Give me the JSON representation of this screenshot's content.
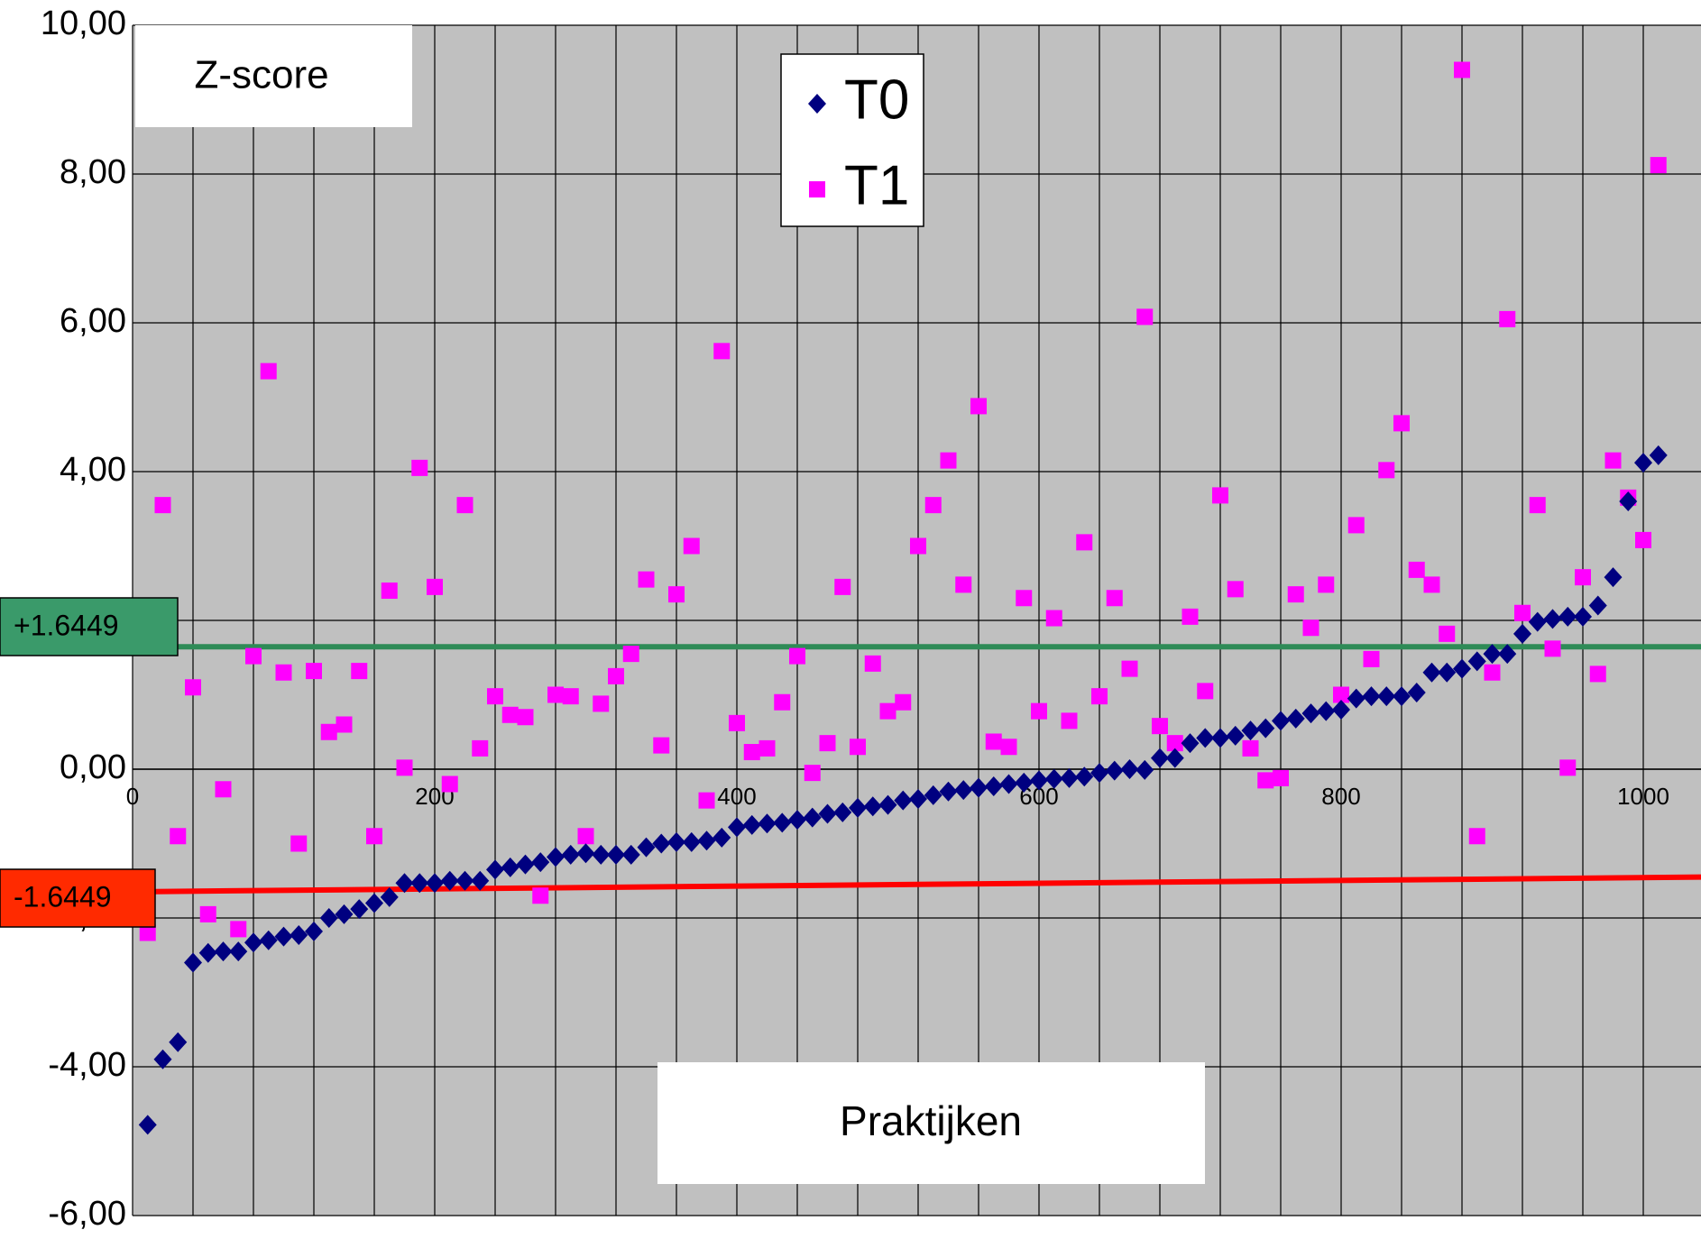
{
  "chart_data": {
    "type": "scatter",
    "ylabel": "Z-score",
    "xlabel": "Praktijken",
    "xlim": [
      0,
      1025
    ],
    "ylim": [
      -6,
      10
    ],
    "x_ticks": [
      "0",
      "200",
      "400",
      "600",
      "800",
      "1000"
    ],
    "y_ticks": [
      "-6,00",
      "-4,00",
      "-2,00",
      "0,00",
      "2,00",
      "4,00",
      "6,00",
      "8,00",
      "10,00"
    ],
    "grid": true,
    "legend_position": "top-center",
    "colors": {
      "plot_bg": "#c0c0c0",
      "t0": "#000080",
      "t1": "#ff00ff",
      "upper_line": "#2e8b57",
      "lower_line": "#ff0000"
    },
    "reference_lines": [
      {
        "label": "+1.6449",
        "y": 1.6449,
        "color": "#2e8b57",
        "label_bg": "#3a9a6a"
      },
      {
        "label": "-1.6449",
        "y_start": -1.6449,
        "y_end": -1.45,
        "color": "#ff0000",
        "label_bg": "#ff2a00"
      }
    ],
    "series": [
      {
        "name": "T0",
        "marker": "diamond",
        "x": [
          10,
          20,
          30,
          40,
          50,
          60,
          70,
          80,
          90,
          100,
          110,
          120,
          130,
          140,
          150,
          160,
          170,
          180,
          190,
          200,
          210,
          220,
          230,
          240,
          250,
          260,
          270,
          280,
          290,
          300,
          310,
          320,
          330,
          340,
          350,
          360,
          370,
          380,
          390,
          400,
          410,
          420,
          430,
          440,
          450,
          460,
          470,
          480,
          490,
          500,
          510,
          520,
          530,
          540,
          550,
          560,
          570,
          580,
          590,
          600,
          610,
          620,
          630,
          640,
          650,
          660,
          670,
          680,
          690,
          700,
          710,
          720,
          730,
          740,
          750,
          760,
          770,
          780,
          790,
          800,
          810,
          820,
          830,
          840,
          850,
          860,
          870,
          880,
          890,
          900,
          910,
          920,
          930,
          940,
          950,
          960,
          970,
          980,
          990,
          1000,
          1010
        ],
        "y": [
          -4.78,
          -3.9,
          -3.67,
          -2.6,
          -2.47,
          -2.45,
          -2.45,
          -2.33,
          -2.3,
          -2.25,
          -2.23,
          -2.18,
          -2.0,
          -1.95,
          -1.88,
          -1.8,
          -1.72,
          -1.53,
          -1.53,
          -1.53,
          -1.5,
          -1.5,
          -1.5,
          -1.35,
          -1.32,
          -1.28,
          -1.25,
          -1.18,
          -1.15,
          -1.13,
          -1.15,
          -1.15,
          -1.15,
          -1.05,
          -1.0,
          -0.98,
          -0.98,
          -0.96,
          -0.92,
          -0.78,
          -0.75,
          -0.73,
          -0.72,
          -0.68,
          -0.65,
          -0.6,
          -0.58,
          -0.52,
          -0.5,
          -0.48,
          -0.42,
          -0.4,
          -0.35,
          -0.3,
          -0.28,
          -0.25,
          -0.23,
          -0.2,
          -0.18,
          -0.15,
          -0.13,
          -0.12,
          -0.1,
          -0.05,
          -0.02,
          -0.0,
          -0.01,
          0.15,
          0.15,
          0.35,
          0.42,
          0.42,
          0.45,
          0.52,
          0.55,
          0.65,
          0.68,
          0.75,
          0.78,
          0.8,
          0.95,
          0.98,
          0.98,
          0.98,
          1.03,
          1.3,
          1.3,
          1.35,
          1.45,
          1.55,
          1.55,
          1.82,
          1.98,
          2.02,
          2.05,
          2.05,
          2.2,
          2.58,
          3.6,
          4.12,
          4.22
        ]
      },
      {
        "name": "T1",
        "marker": "square",
        "x": [
          10,
          20,
          30,
          40,
          50,
          60,
          70,
          80,
          90,
          100,
          110,
          120,
          130,
          140,
          150,
          160,
          170,
          180,
          190,
          200,
          210,
          220,
          230,
          240,
          250,
          260,
          270,
          280,
          290,
          300,
          310,
          320,
          330,
          340,
          350,
          360,
          370,
          380,
          390,
          400,
          410,
          420,
          430,
          440,
          450,
          460,
          470,
          480,
          490,
          500,
          510,
          520,
          530,
          540,
          550,
          560,
          570,
          580,
          590,
          600,
          610,
          620,
          630,
          640,
          650,
          660,
          670,
          680,
          690,
          700,
          710,
          720,
          730,
          740,
          750,
          760,
          770,
          780,
          790,
          800,
          810,
          820,
          830,
          840,
          850,
          860,
          870,
          880,
          890,
          900,
          910,
          920,
          930,
          940,
          950,
          960,
          970,
          980,
          990,
          1000,
          1010
        ],
        "y": [
          -2.2,
          3.55,
          -0.9,
          1.1,
          -1.95,
          -0.27,
          -2.15,
          1.52,
          5.35,
          1.3,
          -1.0,
          1.32,
          0.5,
          0.6,
          1.32,
          -0.9,
          2.4,
          0.02,
          4.05,
          2.45,
          -0.2,
          3.55,
          0.28,
          0.98,
          0.73,
          0.7,
          -1.7,
          1.0,
          0.98,
          -0.9,
          0.88,
          1.25,
          1.55,
          2.55,
          0.32,
          2.35,
          3.0,
          -0.42,
          5.62,
          0.62,
          0.23,
          0.28,
          0.9,
          1.52,
          -0.05,
          0.35,
          2.45,
          0.3,
          1.42,
          0.78,
          0.9,
          3.0,
          3.55,
          4.15,
          2.48,
          4.88,
          0.37,
          0.3,
          2.3,
          0.78,
          2.03,
          0.65,
          3.05,
          0.98,
          2.3,
          1.35,
          6.08,
          0.58,
          0.35,
          2.05,
          1.05,
          3.68,
          2.42,
          0.28,
          -0.15,
          -0.12,
          2.35,
          1.9,
          2.48,
          1.0,
          3.28,
          1.48,
          4.02,
          4.65,
          2.68,
          2.48,
          1.82,
          9.4,
          -0.9,
          1.3,
          6.05,
          2.1,
          3.55,
          1.62,
          0.02,
          2.58,
          1.28,
          4.15,
          3.65,
          3.08,
          8.12
        ]
      }
    ]
  }
}
